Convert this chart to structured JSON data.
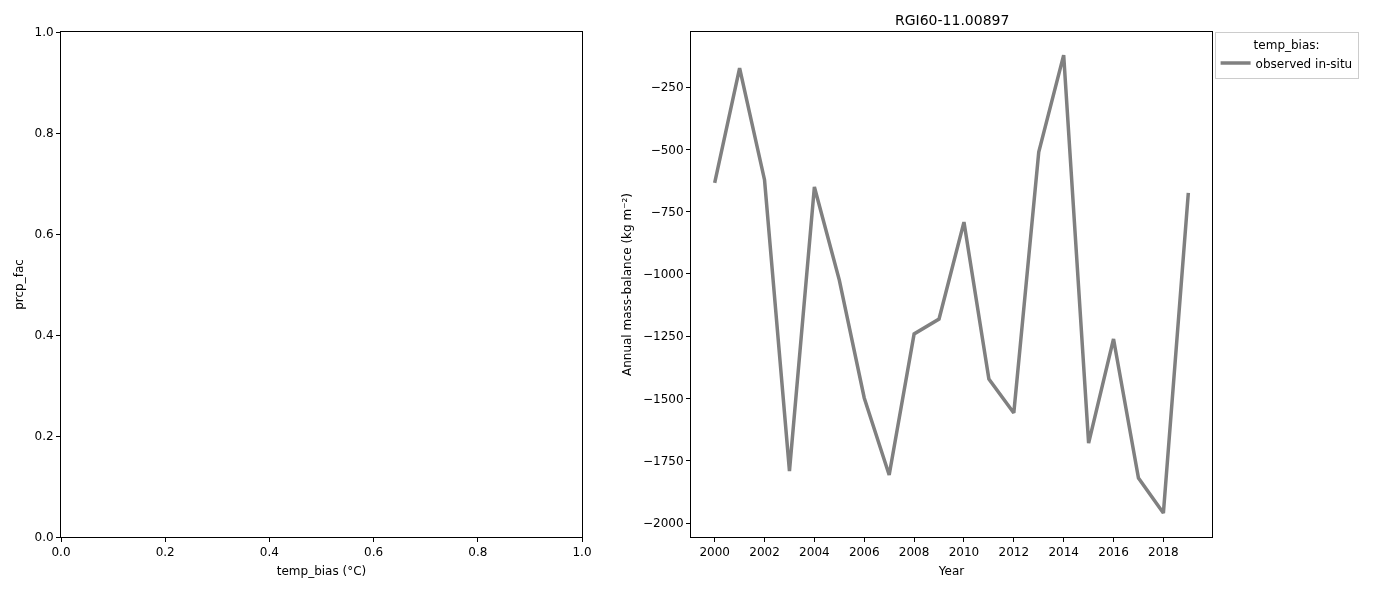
{
  "chart_data": [
    {
      "type": "scatter",
      "xlabel": "temp_bias (°C)",
      "ylabel": "prcp_fac",
      "xlim": [
        0,
        1
      ],
      "ylim": [
        0,
        1
      ],
      "xticks": [
        {
          "value": 0,
          "label": "0.0"
        },
        0.2,
        0.4,
        0.6,
        0.8,
        {
          "value": 1,
          "label": "1.0"
        }
      ],
      "yticks": [
        {
          "value": 0,
          "label": "0.0"
        },
        0.2,
        0.4,
        0.6,
        0.8,
        {
          "value": 1,
          "label": "1.0"
        }
      ]
    },
    {
      "type": "line",
      "title": "RGI60-11.00897",
      "xlabel": "Year",
      "ylabel": "Annual mass-balance (kg m⁻²)",
      "legend_title": "temp_bias:",
      "legend": "top right",
      "x": [
        2000,
        2001,
        2002,
        2003,
        2004,
        2005,
        2006,
        2007,
        2008,
        2009,
        2010,
        2011,
        2012,
        2013,
        2014,
        2015,
        2016,
        2017,
        2018,
        2019
      ],
      "series": [
        {
          "name": "observed in-situ",
          "color": "#808080",
          "values": [
            -635,
            -174,
            -623,
            -1791,
            -651,
            -1025,
            -1498,
            -1807,
            -1241,
            -1181,
            -792,
            -1422,
            -1558,
            -511,
            -122,
            -1679,
            -1261,
            -1819,
            -1960,
            -675
          ]
        }
      ],
      "xlim": [
        1999.05,
        2019.95
      ],
      "ylim": [
        -2056,
        -29
      ],
      "xticks": [
        2000,
        2002,
        2004,
        2006,
        2008,
        2010,
        2012,
        2014,
        2016,
        2018
      ],
      "yticks": [
        {
          "value": -2000,
          "label": "−2000"
        },
        {
          "value": -1750,
          "label": "−1750"
        },
        {
          "value": -1500,
          "label": "−1500"
        },
        {
          "value": -1250,
          "label": "−1250"
        },
        {
          "value": -1000,
          "label": "−1000"
        },
        {
          "value": -750,
          "label": "−750"
        },
        {
          "value": -500,
          "label": "−500"
        },
        {
          "value": -250,
          "label": "−250"
        }
      ],
      "line_style": "solid",
      "marker": "none"
    }
  ]
}
